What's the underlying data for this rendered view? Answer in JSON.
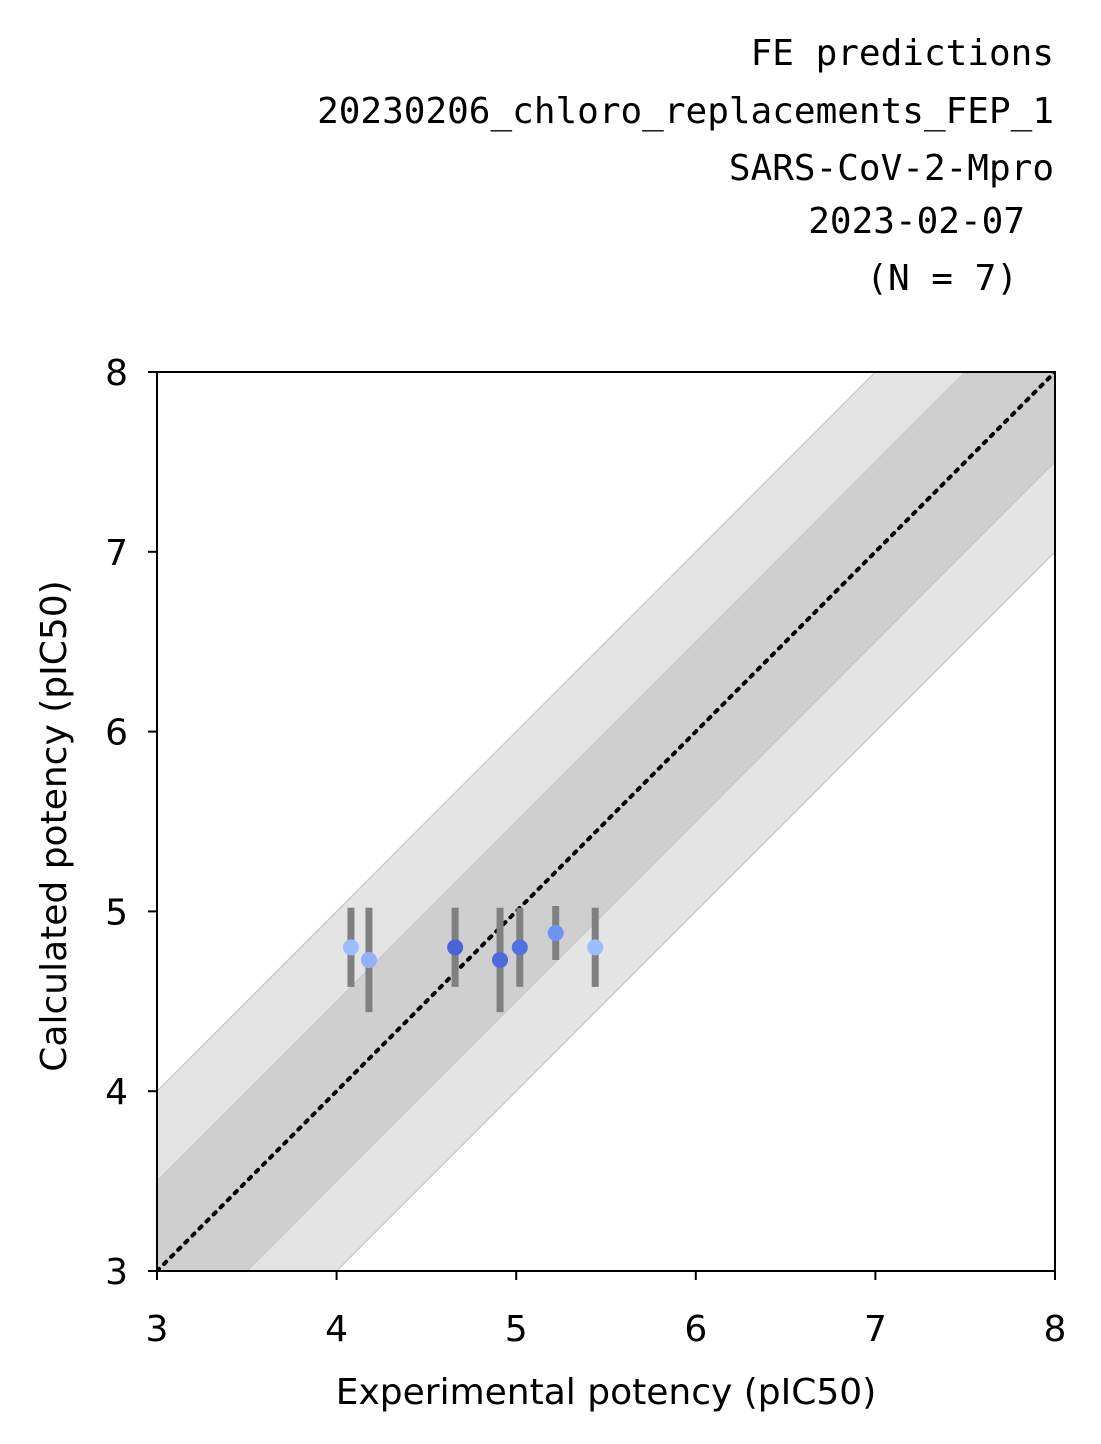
{
  "chart_data": {
    "type": "scatter",
    "title_lines": [
      "FE predictions",
      "20230206_chloro_replacements_FEP_1",
      "SARS-CoV-2-Mpro",
      "2023-02-07",
      "(N = 7)"
    ],
    "xlabel": "Experimental potency (pIC50)",
    "ylabel": "Calculated potency (pIC50)",
    "xlim": [
      3,
      8
    ],
    "ylim": [
      3,
      8
    ],
    "x_ticks": [
      "3",
      "4",
      "5",
      "6",
      "7",
      "8"
    ],
    "y_ticks": [
      "3",
      "4",
      "5",
      "6",
      "7",
      "8"
    ],
    "identity_line": true,
    "bands": [
      {
        "half_width": 1.0,
        "color": "#e4e4e4"
      },
      {
        "half_width": 0.5,
        "color": "#cfcfcf"
      }
    ],
    "errorbar_color": "#808080",
    "points": [
      {
        "x": 4.08,
        "y": 4.8,
        "err": 0.22,
        "color": "#9bbcff"
      },
      {
        "x": 4.18,
        "y": 4.73,
        "err": 0.29,
        "color": "#8fb2fb"
      },
      {
        "x": 4.66,
        "y": 4.8,
        "err": 0.22,
        "color": "#4a64d6"
      },
      {
        "x": 4.91,
        "y": 4.73,
        "err": 0.29,
        "color": "#4d69da"
      },
      {
        "x": 5.02,
        "y": 4.8,
        "err": 0.22,
        "color": "#5271de"
      },
      {
        "x": 5.22,
        "y": 4.88,
        "err": 0.15,
        "color": "#6e93f4"
      },
      {
        "x": 5.44,
        "y": 4.8,
        "err": 0.22,
        "color": "#9bbcff"
      }
    ]
  }
}
